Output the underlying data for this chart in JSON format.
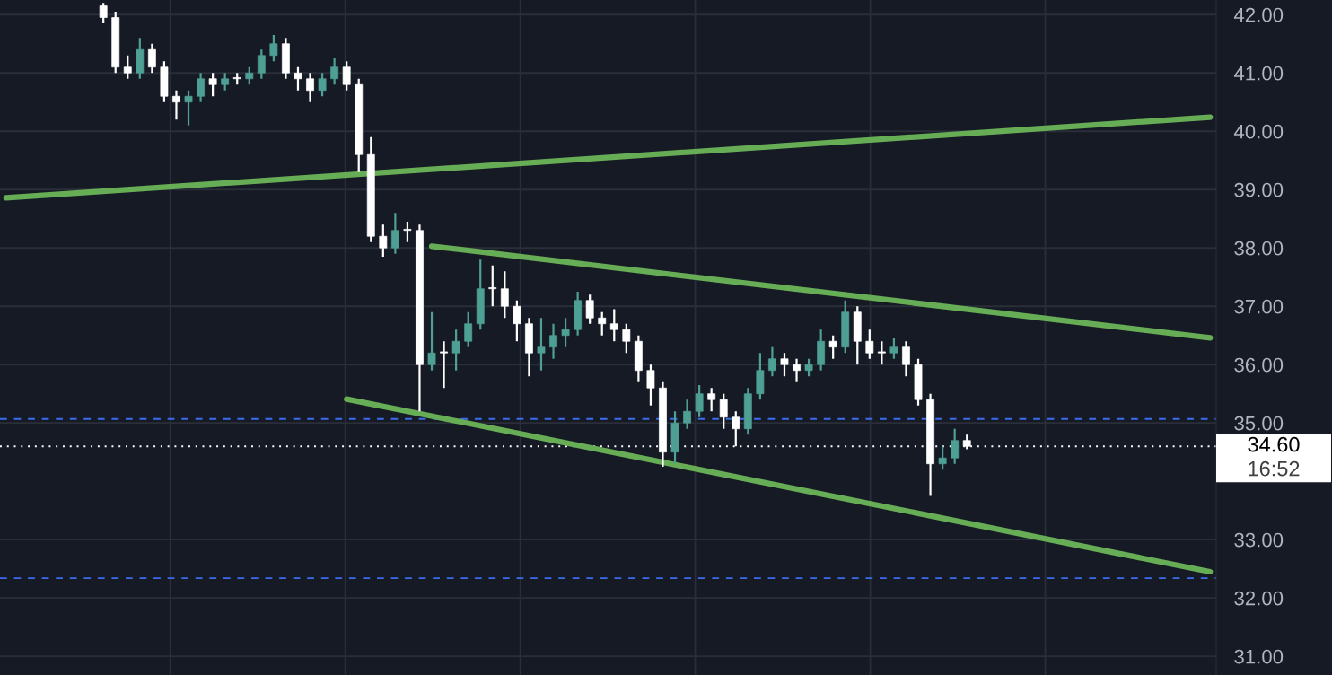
{
  "chart_data": {
    "type": "candlestick",
    "categories": [
      null,
      null,
      null,
      null,
      null,
      null,
      null,
      null,
      null,
      null,
      null,
      null,
      null,
      null,
      null,
      null,
      null,
      null,
      null,
      null,
      null,
      null,
      null,
      null,
      null,
      null,
      null,
      null,
      null,
      null,
      null,
      null,
      null,
      null,
      null,
      null,
      null,
      null,
      null,
      null,
      null,
      null,
      null,
      null,
      null,
      null,
      null,
      null,
      null,
      null,
      null,
      null,
      null,
      null,
      null,
      null,
      null,
      null,
      null,
      null,
      null,
      null,
      null,
      null,
      null,
      null,
      null,
      null,
      null,
      null,
      null,
      null,
      null,
      null,
      null,
      null,
      null,
      null,
      null,
      null,
      null,
      null,
      null,
      null,
      null,
      null,
      null,
      null,
      null,
      null,
      null,
      null,
      null,
      null,
      null,
      null,
      null,
      null,
      null,
      null
    ],
    "ohlc": [
      null,
      null,
      null,
      null,
      null,
      null,
      null,
      null,
      [
        42.15,
        42.2,
        41.85,
        41.95
      ],
      [
        41.95,
        42.05,
        41.0,
        41.1
      ],
      [
        41.1,
        41.3,
        40.9,
        41.0
      ],
      [
        41.0,
        41.6,
        40.9,
        41.4
      ],
      [
        41.4,
        41.5,
        41.0,
        41.1
      ],
      [
        41.1,
        41.2,
        40.5,
        40.6
      ],
      [
        40.6,
        40.7,
        40.2,
        40.5
      ],
      [
        40.5,
        40.7,
        40.1,
        40.6
      ],
      [
        40.6,
        41.0,
        40.5,
        40.9
      ],
      [
        40.9,
        41.0,
        40.6,
        40.8
      ],
      [
        40.8,
        41.0,
        40.7,
        40.9
      ],
      [
        40.9,
        41.0,
        40.8,
        40.9
      ],
      [
        40.9,
        41.1,
        40.8,
        41.0
      ],
      [
        41.0,
        41.4,
        40.9,
        41.3
      ],
      [
        41.3,
        41.65,
        41.2,
        41.5
      ],
      [
        41.5,
        41.6,
        40.9,
        41.0
      ],
      [
        41.0,
        41.1,
        40.7,
        40.9
      ],
      [
        40.9,
        41.0,
        40.5,
        40.7
      ],
      [
        40.7,
        41.0,
        40.6,
        40.9
      ],
      [
        40.9,
        41.25,
        40.8,
        41.1
      ],
      [
        41.1,
        41.2,
        40.7,
        40.8
      ],
      [
        40.8,
        40.9,
        39.3,
        39.6
      ],
      [
        39.6,
        39.9,
        38.1,
        38.2
      ],
      [
        38.2,
        38.4,
        37.85,
        38.0
      ],
      [
        38.0,
        38.6,
        37.9,
        38.3
      ],
      [
        38.3,
        38.45,
        38.1,
        38.3
      ],
      [
        38.3,
        38.4,
        35.2,
        36.0
      ],
      [
        36.0,
        36.9,
        35.9,
        36.2
      ],
      [
        36.2,
        36.4,
        35.6,
        36.2
      ],
      [
        36.2,
        36.6,
        35.9,
        36.4
      ],
      [
        36.4,
        36.9,
        36.3,
        36.7
      ],
      [
        36.7,
        37.8,
        36.6,
        37.3
      ],
      [
        37.3,
        37.7,
        37.0,
        37.3
      ],
      [
        37.3,
        37.6,
        36.8,
        37.0
      ],
      [
        37.0,
        37.1,
        36.4,
        36.7
      ],
      [
        36.7,
        36.8,
        35.8,
        36.2
      ],
      [
        36.2,
        36.8,
        35.9,
        36.3
      ],
      [
        36.3,
        36.7,
        36.1,
        36.5
      ],
      [
        36.5,
        36.8,
        36.3,
        36.6
      ],
      [
        36.6,
        37.25,
        36.5,
        37.1
      ],
      [
        37.1,
        37.2,
        36.7,
        36.8
      ],
      [
        36.8,
        36.9,
        36.5,
        36.7
      ],
      [
        36.7,
        36.95,
        36.4,
        36.6
      ],
      [
        36.6,
        36.7,
        36.2,
        36.4
      ],
      [
        36.4,
        36.5,
        35.7,
        35.9
      ],
      [
        35.9,
        36.0,
        35.3,
        35.6
      ],
      [
        35.6,
        35.7,
        34.25,
        34.5
      ],
      [
        34.5,
        35.2,
        34.3,
        35.0
      ],
      [
        35.0,
        35.4,
        34.9,
        35.2
      ],
      [
        35.2,
        35.65,
        35.1,
        35.5
      ],
      [
        35.5,
        35.6,
        35.2,
        35.4
      ],
      [
        35.4,
        35.5,
        34.9,
        35.1
      ],
      [
        35.1,
        35.2,
        34.6,
        34.9
      ],
      [
        34.9,
        35.6,
        34.8,
        35.5
      ],
      [
        35.5,
        36.2,
        35.4,
        35.9
      ],
      [
        35.9,
        36.3,
        35.8,
        36.1
      ],
      [
        36.1,
        36.2,
        35.8,
        36.0
      ],
      [
        36.0,
        36.1,
        35.7,
        35.9
      ],
      [
        35.9,
        36.1,
        35.8,
        36.0
      ],
      [
        36.0,
        36.6,
        35.9,
        36.4
      ],
      [
        36.4,
        36.5,
        36.1,
        36.3
      ],
      [
        36.3,
        37.1,
        36.2,
        36.9
      ],
      [
        36.9,
        37.0,
        36.0,
        36.4
      ],
      [
        36.4,
        36.6,
        36.1,
        36.2
      ],
      [
        36.2,
        36.4,
        36.0,
        36.2
      ],
      [
        36.2,
        36.45,
        36.1,
        36.3
      ],
      [
        36.3,
        36.4,
        35.8,
        36.0
      ],
      [
        36.0,
        36.1,
        35.3,
        35.4
      ],
      [
        35.4,
        35.5,
        33.75,
        34.3
      ],
      [
        34.3,
        34.6,
        34.2,
        34.4
      ],
      [
        34.4,
        34.9,
        34.3,
        34.7
      ],
      [
        34.7,
        34.8,
        34.55,
        34.6
      ],
      null,
      null,
      null,
      null,
      null,
      null,
      null,
      null,
      null,
      null,
      null,
      null,
      null,
      null,
      null,
      null,
      null,
      null,
      null,
      null
    ],
    "colors": [
      null,
      null,
      null,
      null,
      null,
      null,
      null,
      null,
      "#ffffff",
      "#ffffff",
      "#ffffff",
      "#4e9f94",
      "#ffffff",
      "#ffffff",
      "#ffffff",
      "#4e9f94",
      "#4e9f94",
      "#ffffff",
      "#4e9f94",
      "#ffffff",
      "#4e9f94",
      "#4e9f94",
      "#4e9f94",
      "#ffffff",
      "#ffffff",
      "#ffffff",
      "#4e9f94",
      "#4e9f94",
      "#ffffff",
      "#ffffff",
      "#ffffff",
      "#ffffff",
      "#4e9f94",
      "#ffffff",
      "#ffffff",
      "#4e9f94",
      "#ffffff",
      "#4e9f94",
      "#4e9f94",
      "#4e9f94",
      "#ffffff",
      "#ffffff",
      "#ffffff",
      "#ffffff",
      "#4e9f94",
      "#4e9f94",
      "#4e9f94",
      "#4e9f94",
      "#ffffff",
      "#ffffff",
      "#ffffff",
      "#ffffff",
      "#ffffff",
      "#ffffff",
      "#ffffff",
      "#4e9f94",
      "#4e9f94",
      "#4e9f94",
      "#ffffff",
      "#ffffff",
      "#ffffff",
      "#4e9f94",
      "#4e9f94",
      "#4e9f94",
      "#ffffff",
      "#ffffff",
      "#4e9f94",
      "#4e9f94",
      "#ffffff",
      "#4e9f94",
      "#ffffff",
      "#ffffff",
      "#ffffff",
      "#4e9f94",
      "#ffffff",
      "#ffffff",
      "#ffffff",
      "#4e9f94",
      "#4e9f94",
      "#ffffff",
      null,
      null,
      null,
      null,
      null,
      null,
      null,
      null,
      null,
      null,
      null,
      null,
      null,
      null,
      null,
      null,
      null,
      null,
      null,
      null
    ],
    "series": [
      {
        "type": "line",
        "color": "#66ad55",
        "values": [
          38.86,
          null,
          null,
          null,
          null,
          null,
          null,
          null,
          null,
          null,
          null,
          null,
          null,
          null,
          null,
          null,
          null,
          null,
          null,
          null,
          null,
          null,
          null,
          null,
          null,
          null,
          null,
          null,
          null,
          null,
          null,
          null,
          null,
          null,
          null,
          null,
          null,
          null,
          null,
          null,
          null,
          null,
          null,
          null,
          null,
          null,
          null,
          null,
          null,
          null,
          null,
          null,
          null,
          null,
          null,
          null,
          null,
          null,
          null,
          null,
          null,
          null,
          null,
          null,
          null,
          null,
          null,
          null,
          null,
          null,
          null,
          null,
          null,
          null,
          null,
          null,
          null,
          null,
          null,
          null,
          null,
          null,
          null,
          null,
          null,
          null,
          null,
          null,
          null,
          null,
          null,
          null,
          null,
          null,
          null,
          null,
          null,
          null,
          null,
          40.24
        ]
      },
      {
        "type": "line",
        "color": "#66ad55",
        "values": [
          null,
          null,
          null,
          null,
          null,
          null,
          null,
          null,
          null,
          null,
          null,
          null,
          null,
          null,
          null,
          null,
          null,
          null,
          null,
          null,
          null,
          null,
          null,
          null,
          null,
          null,
          null,
          null,
          null,
          null,
          null,
          null,
          null,
          null,
          null,
          38.03,
          null,
          null,
          null,
          null,
          null,
          null,
          null,
          null,
          null,
          null,
          null,
          null,
          null,
          null,
          null,
          null,
          null,
          null,
          null,
          null,
          null,
          null,
          null,
          null,
          null,
          null,
          null,
          null,
          null,
          null,
          null,
          null,
          null,
          null,
          null,
          null,
          null,
          null,
          null,
          null,
          null,
          null,
          null,
          null,
          null,
          null,
          null,
          null,
          null,
          null,
          null,
          null,
          null,
          null,
          null,
          null,
          null,
          null,
          null,
          null,
          null,
          null,
          null,
          36.46
        ]
      },
      {
        "type": "line",
        "color": "#66ad55",
        "values": [
          null,
          null,
          null,
          null,
          null,
          null,
          null,
          null,
          null,
          null,
          null,
          null,
          null,
          null,
          null,
          null,
          null,
          null,
          null,
          null,
          null,
          null,
          null,
          null,
          null,
          null,
          null,
          null,
          35.41,
          null,
          null,
          null,
          null,
          null,
          null,
          null,
          null,
          null,
          null,
          null,
          null,
          null,
          null,
          null,
          null,
          null,
          null,
          null,
          null,
          null,
          null,
          null,
          null,
          null,
          null,
          null,
          null,
          null,
          null,
          null,
          null,
          null,
          null,
          null,
          null,
          null,
          null,
          null,
          null,
          null,
          null,
          null,
          null,
          null,
          null,
          null,
          null,
          null,
          null,
          null,
          null,
          null,
          null,
          null,
          null,
          null,
          null,
          null,
          null,
          null,
          null,
          null,
          null,
          null,
          null,
          null,
          null,
          null,
          null,
          32.45
        ]
      }
    ],
    "ylim": [
      30.68,
      42.25
    ],
    "yticks": [
      {
        "value": 31,
        "label": "31.00"
      },
      {
        "value": 32,
        "label": "32.00"
      },
      {
        "value": 33,
        "label": "33.00"
      },
      {
        "value": 35,
        "label": "35.00"
      },
      {
        "value": 36,
        "label": "36.00"
      },
      {
        "value": 37,
        "label": "37.00"
      },
      {
        "value": 38,
        "label": "38.00"
      },
      {
        "value": 39,
        "label": "39.00"
      },
      {
        "value": 40,
        "label": "40.00"
      },
      {
        "value": 41,
        "label": "41.00"
      },
      {
        "value": 42,
        "label": "42.00"
      }
    ],
    "ref_lines": [
      {
        "axis": "y",
        "value": 35.07,
        "color": "#3b6cf0",
        "line_style": "dashed"
      },
      {
        "axis": "y",
        "value": 32.34,
        "color": "#3b6cf0",
        "line_style": "dashed"
      },
      {
        "axis": "y",
        "value": 34.6,
        "label": "34.60",
        "color": "#ffffff",
        "line_style": "dotted"
      }
    ],
    "annotations": [
      "16:52"
    ],
    "grid": true,
    "tick_labels": "y"
  }
}
